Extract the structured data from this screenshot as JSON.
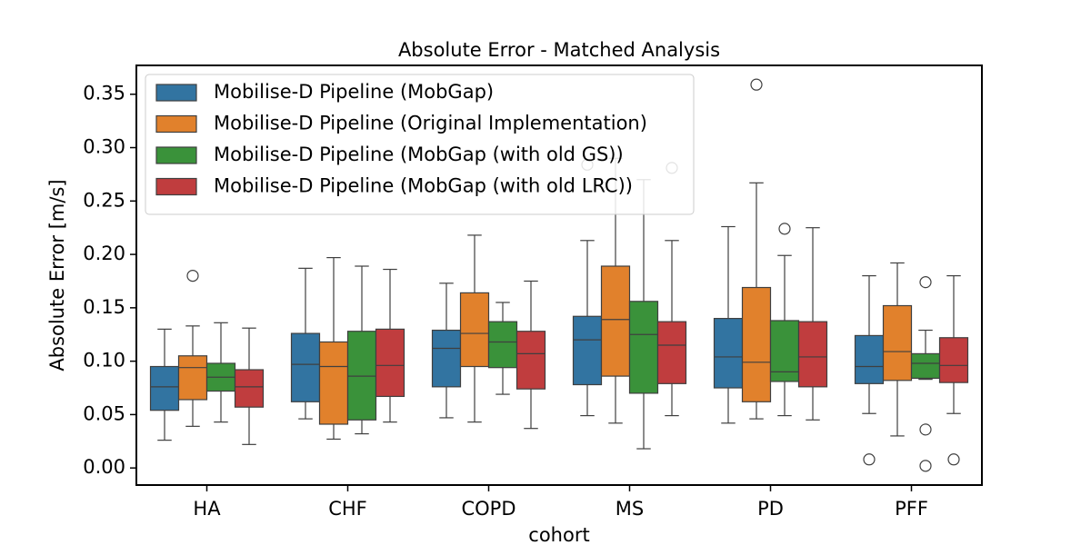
{
  "chart_data": {
    "type": "box",
    "title": "Absolute Error - Matched Analysis",
    "x_label": "cohort",
    "y_label": "Absolute Error [m/s]",
    "categories": [
      "HA",
      "CHF",
      "COPD",
      "MS",
      "PD",
      "PFF"
    ],
    "ylim": [
      -0.016,
      0.377
    ],
    "yticks": [
      {
        "value": 0,
        "label": "0.00"
      },
      {
        "value": 0.05,
        "label": "0.05"
      },
      {
        "value": 0.1,
        "label": "0.10"
      },
      {
        "value": 0.15,
        "label": "0.15"
      },
      {
        "value": 0.2,
        "label": "0.20"
      },
      {
        "value": 0.25,
        "label": "0.25"
      },
      {
        "value": 0.3,
        "label": "0.30"
      },
      {
        "value": 0.35,
        "label": "0.35"
      }
    ],
    "legend_position": "upper left",
    "series": [
      {
        "name": "Mobilise-D Pipeline (MobGap)",
        "color": "#3274a1",
        "stats": [
          {
            "whislo": 0.026,
            "q1": 0.054,
            "med": 0.076,
            "q3": 0.095,
            "whishi": 0.13,
            "fliers": []
          },
          {
            "whislo": 0.046,
            "q1": 0.062,
            "med": 0.097,
            "q3": 0.126,
            "whishi": 0.187,
            "fliers": []
          },
          {
            "whislo": 0.047,
            "q1": 0.076,
            "med": 0.112,
            "q3": 0.129,
            "whishi": 0.173,
            "fliers": []
          },
          {
            "whislo": 0.049,
            "q1": 0.078,
            "med": 0.12,
            "q3": 0.142,
            "whishi": 0.213,
            "fliers": [
              0.284
            ]
          },
          {
            "whislo": 0.042,
            "q1": 0.075,
            "med": 0.104,
            "q3": 0.14,
            "whishi": 0.226,
            "fliers": []
          },
          {
            "whislo": 0.051,
            "q1": 0.079,
            "med": 0.095,
            "q3": 0.124,
            "whishi": 0.18,
            "fliers": [
              0.008
            ]
          }
        ]
      },
      {
        "name": "Mobilise-D Pipeline (Original Implementation)",
        "color": "#e1812c",
        "stats": [
          {
            "whislo": 0.039,
            "q1": 0.064,
            "med": 0.094,
            "q3": 0.105,
            "whishi": 0.133,
            "fliers": [
              0.18
            ]
          },
          {
            "whislo": 0.027,
            "q1": 0.041,
            "med": 0.095,
            "q3": 0.118,
            "whishi": 0.197,
            "fliers": []
          },
          {
            "whislo": 0.043,
            "q1": 0.095,
            "med": 0.126,
            "q3": 0.164,
            "whishi": 0.218,
            "fliers": []
          },
          {
            "whislo": 0.042,
            "q1": 0.086,
            "med": 0.139,
            "q3": 0.189,
            "whishi": 0.29,
            "fliers": []
          },
          {
            "whislo": 0.046,
            "q1": 0.062,
            "med": 0.099,
            "q3": 0.169,
            "whishi": 0.267,
            "fliers": [
              0.359
            ]
          },
          {
            "whislo": 0.03,
            "q1": 0.082,
            "med": 0.109,
            "q3": 0.152,
            "whishi": 0.192,
            "fliers": []
          }
        ]
      },
      {
        "name": "Mobilise-D Pipeline (MobGap (with old GS))",
        "color": "#3a923a",
        "stats": [
          {
            "whislo": 0.043,
            "q1": 0.072,
            "med": 0.085,
            "q3": 0.098,
            "whishi": 0.136,
            "fliers": []
          },
          {
            "whislo": 0.032,
            "q1": 0.045,
            "med": 0.086,
            "q3": 0.128,
            "whishi": 0.189,
            "fliers": []
          },
          {
            "whislo": 0.069,
            "q1": 0.094,
            "med": 0.118,
            "q3": 0.137,
            "whishi": 0.155,
            "fliers": []
          },
          {
            "whislo": 0.018,
            "q1": 0.07,
            "med": 0.125,
            "q3": 0.156,
            "whishi": 0.27,
            "fliers": []
          },
          {
            "whislo": 0.049,
            "q1": 0.081,
            "med": 0.09,
            "q3": 0.138,
            "whishi": 0.199,
            "fliers": [
              0.224
            ]
          },
          {
            "whislo": 0.083,
            "q1": 0.084,
            "med": 0.098,
            "q3": 0.107,
            "whishi": 0.129,
            "fliers": [
              0.174,
              0.036,
              0.002
            ]
          }
        ]
      },
      {
        "name": "Mobilise-D Pipeline (MobGap (with old LRC))",
        "color": "#c03d3e",
        "stats": [
          {
            "whislo": 0.022,
            "q1": 0.057,
            "med": 0.076,
            "q3": 0.092,
            "whishi": 0.131,
            "fliers": []
          },
          {
            "whislo": 0.043,
            "q1": 0.067,
            "med": 0.096,
            "q3": 0.13,
            "whishi": 0.186,
            "fliers": []
          },
          {
            "whislo": 0.037,
            "q1": 0.074,
            "med": 0.107,
            "q3": 0.128,
            "whishi": 0.175,
            "fliers": []
          },
          {
            "whislo": 0.049,
            "q1": 0.079,
            "med": 0.115,
            "q3": 0.137,
            "whishi": 0.213,
            "fliers": [
              0.281
            ]
          },
          {
            "whislo": 0.045,
            "q1": 0.076,
            "med": 0.104,
            "q3": 0.137,
            "whishi": 0.225,
            "fliers": []
          },
          {
            "whislo": 0.051,
            "q1": 0.08,
            "med": 0.096,
            "q3": 0.122,
            "whishi": 0.18,
            "fliers": [
              0.008
            ]
          }
        ]
      }
    ]
  }
}
